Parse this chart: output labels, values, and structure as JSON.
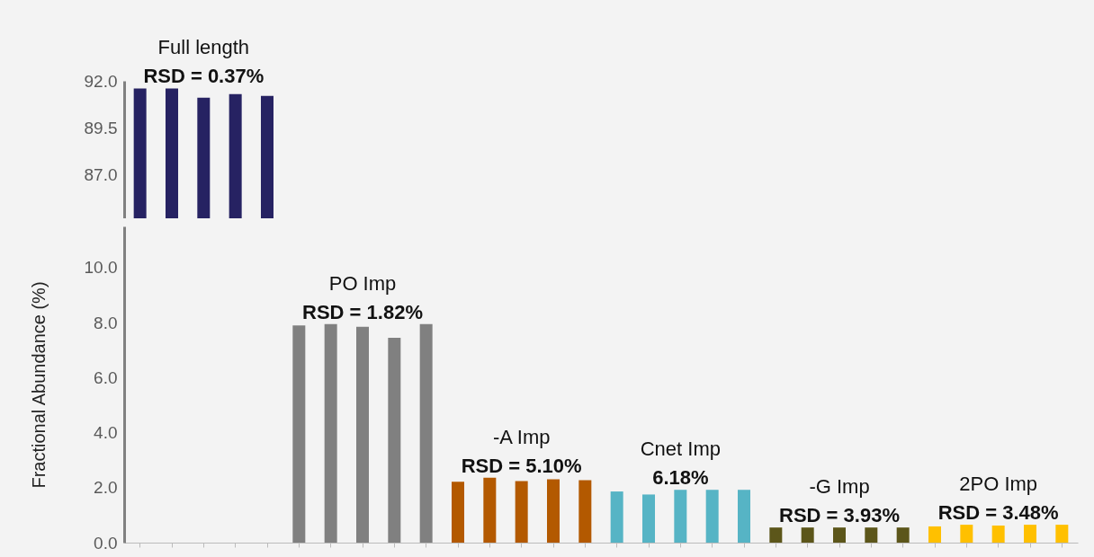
{
  "chart_data": [
    {
      "type": "bar",
      "categories": [
        null,
        null,
        null,
        null,
        null
      ],
      "series": [
        {
          "name": "Full length",
          "color": "#262262",
          "values": [
            91.6,
            91.6,
            91.1,
            91.3,
            91.2
          ]
        }
      ],
      "annotations": [
        "RSD = 0.37%"
      ],
      "ylim": [
        84.7,
        92.0
      ],
      "yticks": [
        {
          "value": 87,
          "label": "87.0"
        },
        {
          "value": 89.5,
          "label": "89.5"
        },
        {
          "value": 92,
          "label": "92.0"
        }
      ],
      "tick_labels": "y",
      "grid": false
    },
    {
      "type": "bar",
      "ylabel": "Fractional Abundance (%)",
      "categories": [
        null,
        null,
        null,
        null,
        null,
        null,
        null,
        null,
        null,
        null,
        null,
        null,
        null,
        null,
        null,
        null,
        null,
        null,
        null,
        null,
        null,
        null,
        null,
        null,
        null,
        null,
        null,
        null,
        null,
        null
      ],
      "series": [
        {
          "name": "PO Imp",
          "color": "#808080",
          "values": [
            null,
            null,
            null,
            null,
            null,
            7.9,
            7.95,
            7.85,
            7.45,
            7.95,
            null,
            null,
            null,
            null,
            null,
            null,
            null,
            null,
            null,
            null,
            null,
            null,
            null,
            null,
            null,
            null,
            null,
            null,
            null,
            null
          ]
        },
        {
          "name": "-A Imp",
          "color": "#b35900",
          "values": [
            null,
            null,
            null,
            null,
            null,
            null,
            null,
            null,
            null,
            null,
            2.21,
            2.36,
            2.24,
            2.3,
            2.27,
            null,
            null,
            null,
            null,
            null,
            null,
            null,
            null,
            null,
            null,
            null,
            null,
            null,
            null,
            null
          ]
        },
        {
          "name": "Cnet Imp",
          "color": "#56b4c5",
          "values": [
            null,
            null,
            null,
            null,
            null,
            null,
            null,
            null,
            null,
            null,
            null,
            null,
            null,
            null,
            null,
            1.86,
            1.75,
            1.92,
            1.92,
            1.92,
            null,
            null,
            null,
            null,
            null,
            null,
            null,
            null,
            null,
            null
          ]
        },
        {
          "name": "-G Imp",
          "color": "#5c561a",
          "values": [
            null,
            null,
            null,
            null,
            null,
            null,
            null,
            null,
            null,
            null,
            null,
            null,
            null,
            null,
            null,
            null,
            null,
            null,
            null,
            null,
            0.55,
            0.55,
            0.55,
            0.55,
            0.55,
            null,
            null,
            null,
            null,
            null
          ]
        },
        {
          "name": "2PO Imp",
          "color": "#ffc000",
          "values": [
            null,
            null,
            null,
            null,
            null,
            null,
            null,
            null,
            null,
            null,
            null,
            null,
            null,
            null,
            null,
            null,
            null,
            null,
            null,
            null,
            null,
            null,
            null,
            null,
            null,
            0.59,
            0.65,
            0.62,
            0.65,
            0.65
          ]
        }
      ],
      "annotations": [
        "RSD = 1.82%",
        "RSD = 5.10%",
        "6.18%",
        "RSD = 3.93%",
        "RSD = 3.48%"
      ],
      "ylim": [
        0,
        11.5
      ],
      "yticks": [
        {
          "value": 0,
          "label": "0.0"
        },
        {
          "value": 2,
          "label": "2.0"
        },
        {
          "value": 4,
          "label": "4.0"
        },
        {
          "value": 6,
          "label": "6.0"
        },
        {
          "value": 8,
          "label": "8.0"
        },
        {
          "value": 10,
          "label": "10.0"
        }
      ],
      "tick_labels": "y",
      "grid": false
    }
  ]
}
